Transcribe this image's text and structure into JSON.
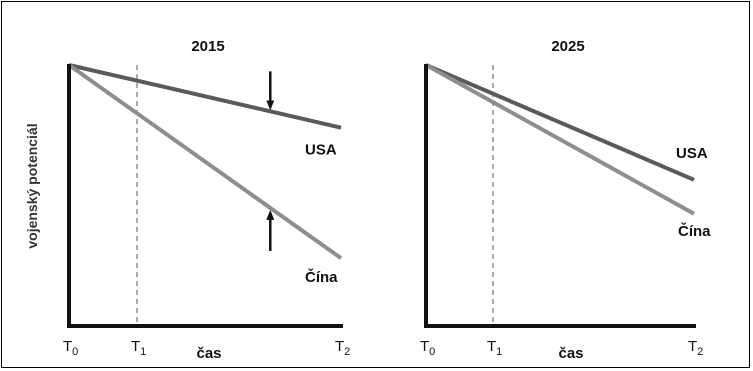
{
  "chart_data": [
    {
      "type": "line",
      "title": "2015",
      "ylabel": "vojenský potenciál",
      "xlabel": "čas",
      "x_ticks": [
        {
          "base": "T",
          "sub": "0"
        },
        {
          "base": "T",
          "sub": "1"
        },
        {
          "base": "T",
          "sub": "2"
        }
      ],
      "xlim": [
        0,
        1
      ],
      "ylim": [
        0,
        1
      ],
      "reference_line": {
        "x": 0.25,
        "style": "dashed"
      },
      "series": [
        {
          "name": "USA",
          "color": "#5a5a5a",
          "points": [
            [
              0,
              1.0
            ],
            [
              1,
              0.76
            ]
          ]
        },
        {
          "name": "Čína",
          "color": "#8e8e8e",
          "points": [
            [
              0,
              1.0
            ],
            [
              1,
              0.26
            ]
          ]
        }
      ],
      "annotations": [
        {
          "type": "arrow-down",
          "x": 0.74,
          "target_series": "USA"
        },
        {
          "type": "arrow-up",
          "x": 0.74,
          "target_series": "Čína"
        }
      ]
    },
    {
      "type": "line",
      "title": "2025",
      "xlabel": "čas",
      "x_ticks": [
        {
          "base": "T",
          "sub": "0"
        },
        {
          "base": "T",
          "sub": "1"
        },
        {
          "base": "T",
          "sub": "2"
        }
      ],
      "xlim": [
        0,
        1
      ],
      "ylim": [
        0,
        1
      ],
      "reference_line": {
        "x": 0.25,
        "style": "dashed"
      },
      "series": [
        {
          "name": "USA",
          "color": "#5a5a5a",
          "points": [
            [
              0,
              1.0
            ],
            [
              1,
              0.56
            ]
          ]
        },
        {
          "name": "Čína",
          "color": "#8e8e8e",
          "points": [
            [
              0,
              1.0
            ],
            [
              1,
              0.43
            ]
          ]
        }
      ]
    }
  ]
}
